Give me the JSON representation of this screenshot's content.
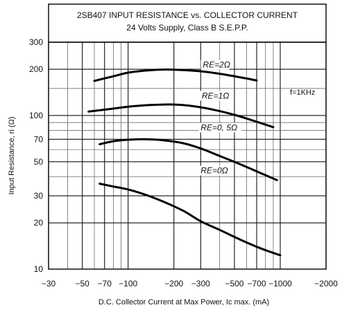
{
  "chart_data": {
    "type": "line",
    "title": "2SB407 INPUT RESISTANCE vs. COLLECTOR CURRENT",
    "subtitle": "24 Volts Supply, Class B S.E.P.P.",
    "xlabel": "D.C. Collector Current at Max Power, Ic max. (mA)",
    "ylabel": "Input  Resistance, ri (Ω)",
    "x_scale": "log",
    "y_scale": "log",
    "xlim": [
      30,
      2000
    ],
    "ylim": [
      10,
      300
    ],
    "x_ticks": [
      30,
      50,
      70,
      100,
      200,
      300,
      500,
      700,
      1000,
      2000
    ],
    "x_tick_labels": [
      "−30",
      "−50",
      "−70",
      "−100",
      "−200",
      "−300",
      "−500",
      "−700",
      "−1000",
      "−2000"
    ],
    "y_ticks": [
      10,
      20,
      30,
      50,
      70,
      100,
      200,
      300
    ],
    "y_tick_labels": [
      "10",
      "20",
      "30",
      "50",
      "70",
      "100",
      "200",
      "300"
    ],
    "grid": true,
    "annotation": "f=1KHz",
    "series": [
      {
        "name": "RE=2Ω",
        "x": [
          60,
          80,
          100,
          130,
          170,
          220,
          300,
          400,
          550,
          700
        ],
        "y": [
          168,
          180,
          190,
          196,
          199,
          198,
          194,
          187,
          177,
          169
        ]
      },
      {
        "name": "RE=1Ω",
        "x": [
          55,
          75,
          100,
          140,
          190,
          250,
          350,
          500,
          700,
          900
        ],
        "y": [
          106,
          110,
          114,
          117,
          118,
          116,
          110,
          101,
          91,
          84
        ]
      },
      {
        "name": "RE=0.5Ω",
        "x": [
          65,
          80,
          100,
          130,
          170,
          230,
          300,
          400,
          550,
          750,
          950
        ],
        "y": [
          65,
          68,
          69.5,
          70,
          69,
          66,
          61,
          54.5,
          48,
          42,
          38
        ]
      },
      {
        "name": "RE=0Ω",
        "x": [
          65,
          80,
          100,
          130,
          170,
          230,
          300,
          400,
          550,
          750,
          1000
        ],
        "y": [
          36,
          34.5,
          33,
          30.5,
          27.5,
          24,
          20.5,
          18,
          15.5,
          13.6,
          12.3
        ]
      }
    ],
    "curve_labels": [
      "RE=2Ω",
      "RE=1Ω",
      "RE=0, 5Ω",
      "RE=0Ω"
    ]
  }
}
